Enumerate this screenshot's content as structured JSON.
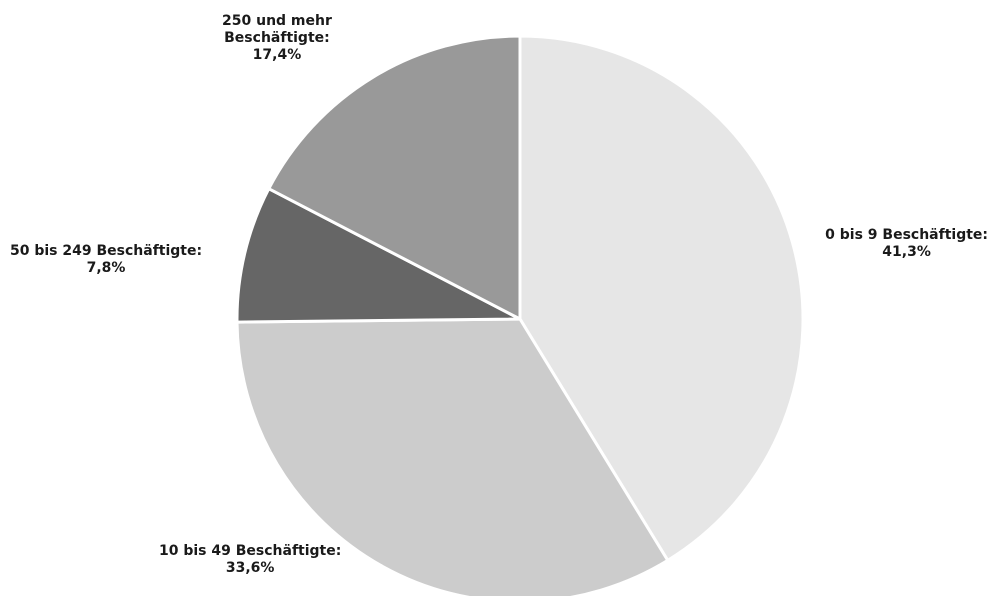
{
  "chart_data": {
    "type": "pie",
    "slices": [
      {
        "label": "0 bis 9 Beschäftigte:",
        "value_label": "41,3%",
        "value": 41.3,
        "color": "#e6e6e6"
      },
      {
        "label": "10 bis 49 Beschäftigte:",
        "value_label": "33,6%",
        "value": 33.6,
        "color": "#cccccc"
      },
      {
        "label": "50 bis 249 Beschäftigte:",
        "value_label": "7,8%",
        "value": 7.8,
        "color": "#666666"
      },
      {
        "label_lines": [
          "250 und mehr",
          "Beschäftigte:"
        ],
        "value_label": "17,4%",
        "value": 17.4,
        "color": "#999999"
      }
    ],
    "start": "12 o'clock",
    "direction": "clockwise",
    "separator_color": "#ffffff",
    "legend": "none"
  }
}
